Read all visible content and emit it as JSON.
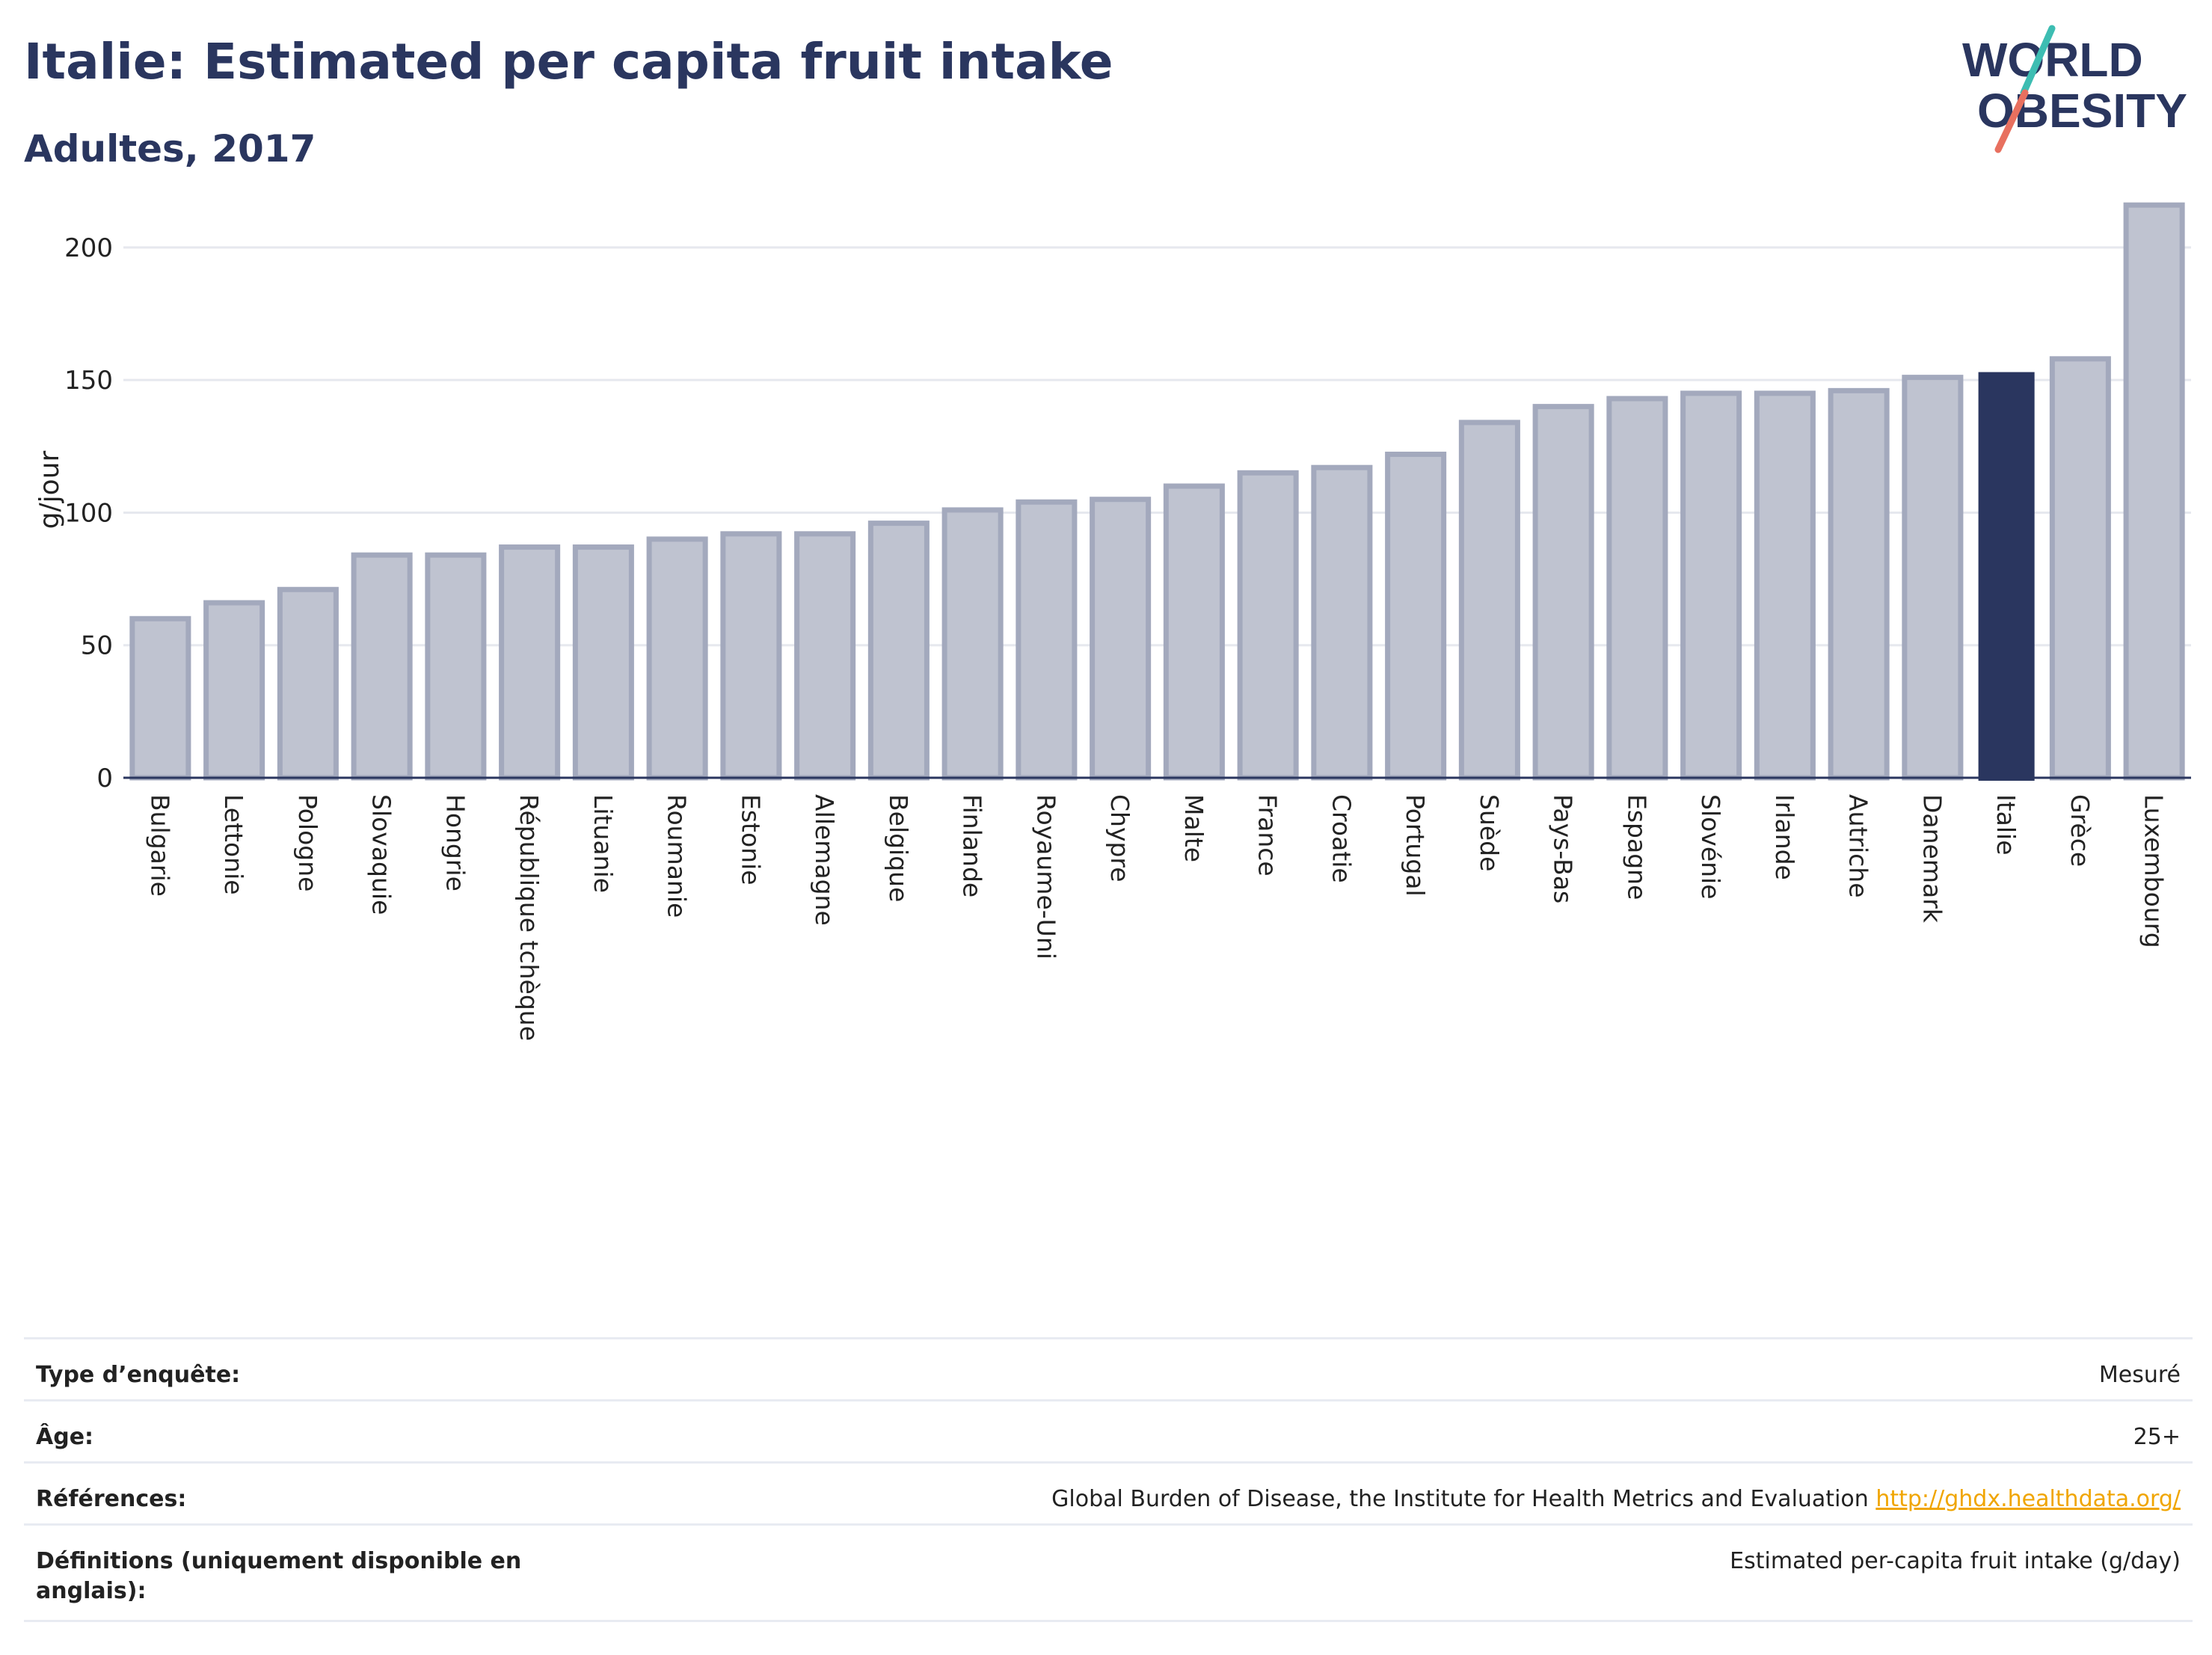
{
  "header": {
    "title": "Italie: Estimated per capita fruit intake",
    "subtitle": "Adultes, 2017"
  },
  "logo": {
    "line1": "WORLD",
    "line2": "OBESITY",
    "icon": "world-obesity-logo"
  },
  "colors": {
    "bar": "#bfc3d0",
    "bar_stroke": "#a3a9bd",
    "highlight": "#2a365f",
    "grid": "#e6e8ee",
    "axis": "#2a365f",
    "title": "#2a365f",
    "link": "#f0a500"
  },
  "chart_data": {
    "type": "bar",
    "title": "Italie: Estimated per capita fruit intake",
    "subtitle": "Adultes, 2017",
    "ylabel": "g/jour",
    "ylim": [
      0,
      220
    ],
    "yticks": [
      0,
      50,
      100,
      150,
      200
    ],
    "grid": true,
    "highlight": "Italie",
    "categories": [
      "Bulgarie",
      "Lettonie",
      "Pologne",
      "Slovaquie",
      "Hongrie",
      "République tchèque",
      "Lituanie",
      "Roumanie",
      "Estonie",
      "Allemagne",
      "Belgique",
      "Finlande",
      "Royaume-Uni",
      "Chypre",
      "Malte",
      "France",
      "Croatie",
      "Portugal",
      "Suède",
      "Pays-Bas",
      "Espagne",
      "Slovénie",
      "Irlande",
      "Autriche",
      "Danemark",
      "Italie",
      "Grèce",
      "Luxembourg"
    ],
    "values": [
      60,
      66,
      71,
      84,
      84,
      87,
      87,
      90,
      92,
      92,
      96,
      101,
      104,
      105,
      110,
      115,
      117,
      122,
      134,
      140,
      143,
      145,
      145,
      146,
      151,
      153,
      158,
      216
    ]
  },
  "info": [
    {
      "label": "Type d’enquête:",
      "value": "Mesuré"
    },
    {
      "label": "Âge:",
      "value": "25+"
    },
    {
      "label": "Références:",
      "value": "Global Burden of Disease, the Institute for Health Metrics and Evaluation",
      "link": "http://ghdx.healthdata.org/"
    },
    {
      "label": "Définitions (uniquement disponible en anglais):",
      "value": "Estimated per-capita fruit intake (g/day)"
    }
  ]
}
